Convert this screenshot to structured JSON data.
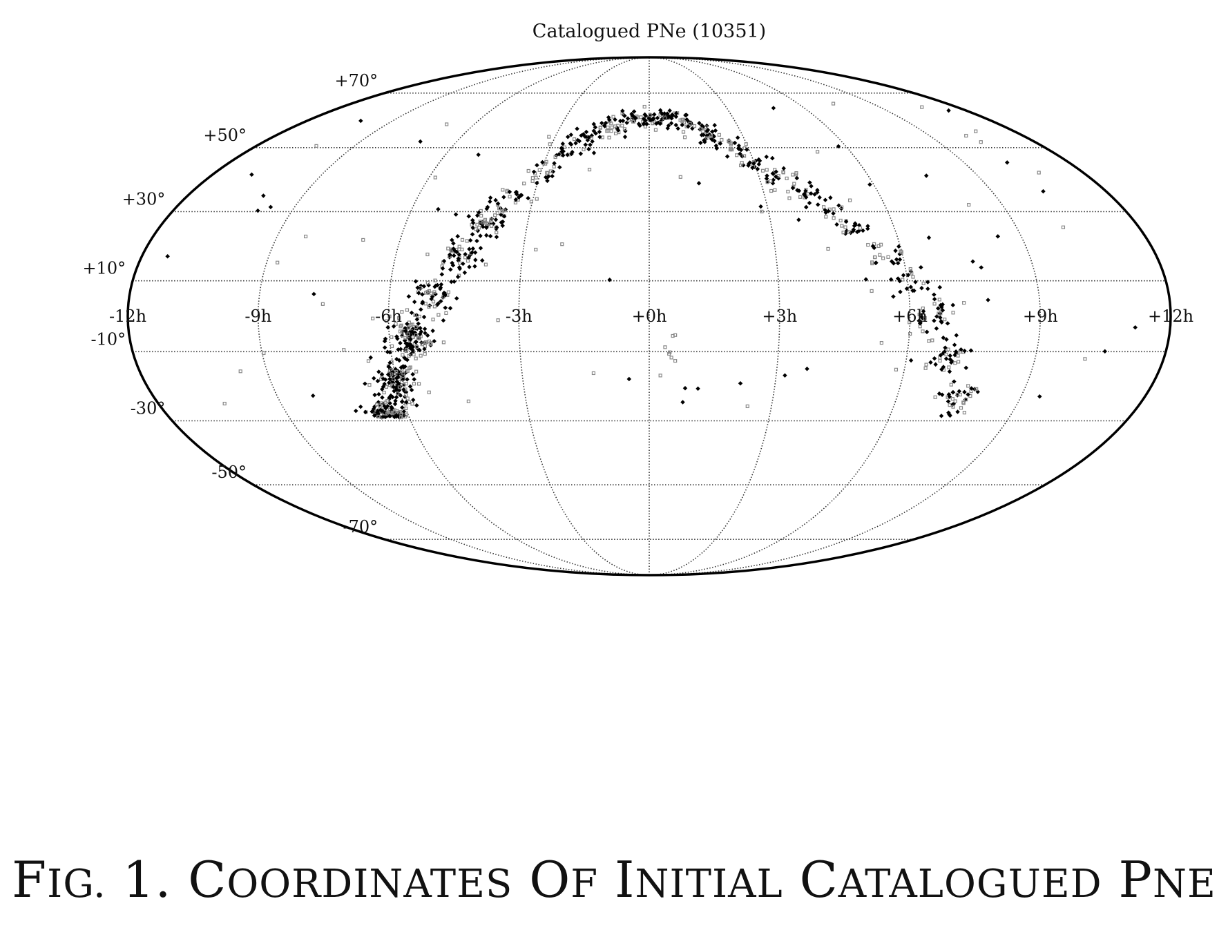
{
  "chart_data": {
    "type": "scatter",
    "projection": "mollweide",
    "title": "Catalogued PNe (10351)",
    "x_ticks": [
      "-12h",
      "-9h",
      "-6h",
      "-3h",
      "+0h",
      "+3h",
      "+6h",
      "+9h",
      "+12h"
    ],
    "y_ticks": [
      "+70°",
      "+50°",
      "+30°",
      "+10°",
      "-10°",
      "-30°",
      "-50°",
      "-70°"
    ],
    "xlim": [
      "-12h",
      "+12h"
    ],
    "ylim": [
      -90,
      90
    ],
    "grid": true,
    "colors": {
      "dark_marker": "#000000",
      "light_marker": "#888888",
      "grid": "#333333",
      "frame": "#000000"
    },
    "series": [
      {
        "marker": "dark",
        "color": "#000000",
        "points": []
      },
      {
        "marker": "light",
        "color": "#888888",
        "points": []
      }
    ],
    "approx_distribution": {
      "note": "Points cluster along the Galactic plane arc from about -6h/-30° through +0h/+60° down to +7h/-30°, densest near -6h/-25°.",
      "arc_ra_hours": [
        -6.5,
        -6.0,
        -5.5,
        -5.0,
        -4.5,
        -4.0,
        -3.5,
        -3.0,
        -2.5,
        -2.0,
        -1.5,
        -1.0,
        -0.5,
        0.0,
        0.5,
        1.0,
        1.5,
        2.0,
        2.5,
        3.0,
        3.5,
        4.0,
        4.5,
        5.0,
        5.5,
        6.0,
        6.5,
        7.0,
        7.5
      ],
      "arc_dec_deg": [
        -28,
        -18,
        -6,
        6,
        17,
        27,
        35,
        42,
        48,
        52,
        56,
        58,
        60,
        61,
        61,
        60,
        57,
        54,
        50,
        45,
        41,
        36,
        31,
        25,
        18,
        10,
        0,
        -12,
        -24
      ]
    }
  },
  "caption": {
    "fig_label": "Fig. 1.",
    "text": "Coordinates of Initial Catalogued PNe"
  }
}
